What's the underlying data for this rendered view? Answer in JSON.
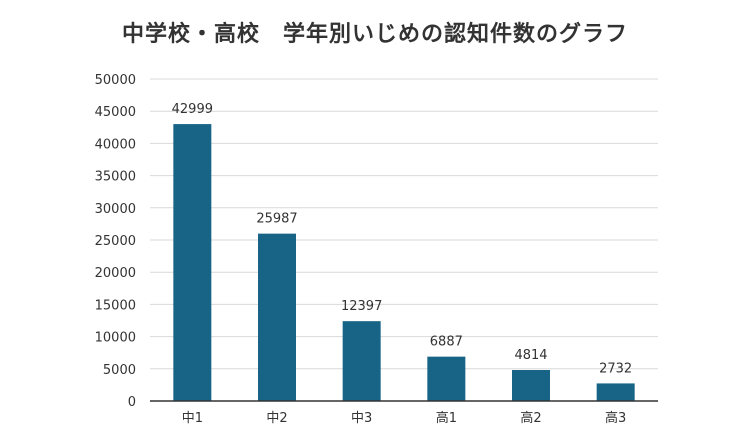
{
  "chart_data": {
    "type": "bar",
    "title": "中学校・高校　学年別いじめの認知件数のグラフ",
    "xlabel": "",
    "ylabel": "",
    "categories": [
      "中1",
      "中2",
      "中3",
      "高1",
      "高2",
      "高3"
    ],
    "values": [
      42999,
      25987,
      12397,
      6887,
      4814,
      2732
    ],
    "ylim": [
      0,
      50000
    ],
    "yticks": [
      0,
      5000,
      10000,
      15000,
      20000,
      25000,
      30000,
      35000,
      40000,
      45000,
      50000
    ],
    "grid": true,
    "legend": "none",
    "colors": {
      "bar": "#176486",
      "grid": "#d9d9d9",
      "axis": "#333333"
    }
  }
}
